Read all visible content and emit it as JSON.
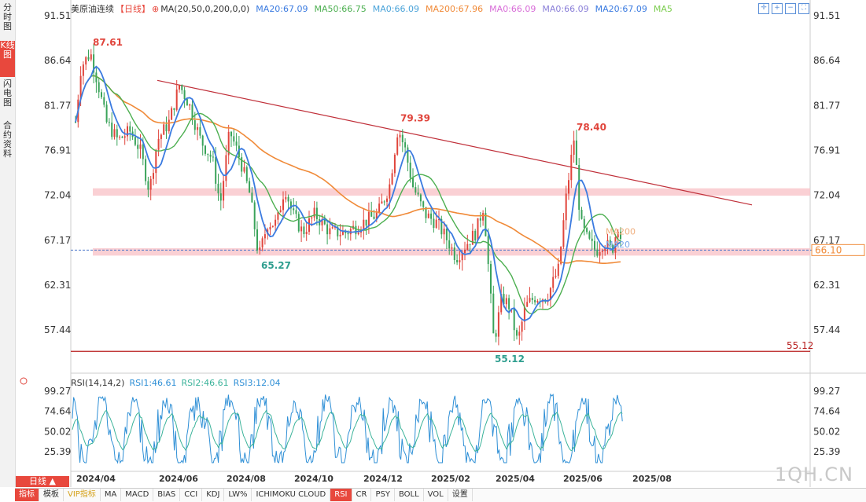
{
  "left_tabs": [
    "分时图",
    "K线图",
    "闪电图",
    "合约资料"
  ],
  "legend": {
    "title": "美原油连续",
    "period": "【日线】",
    "indicator": "MA(20,50,0,200,0,0)",
    "items": [
      {
        "label": "MA20:67.09",
        "color": "#3b7be0"
      },
      {
        "label": "MA50:66.75",
        "color": "#4caf50"
      },
      {
        "label": "MA0:66.09",
        "color": "#4aa3d9"
      },
      {
        "label": "MA200:67.96",
        "color": "#f08a38"
      },
      {
        "label": "MA0:66.09",
        "color": "#d86cd8"
      },
      {
        "label": "MA0:66.09",
        "color": "#8a7fd8"
      },
      {
        "label": "MA20:67.09",
        "color": "#3b7be0"
      },
      {
        "label": "MA5",
        "color": "#7ccd4f"
      }
    ]
  },
  "rsi_legend": {
    "title": "RSI(14,14,2)",
    "items": [
      {
        "label": "RSI1:46.61",
        "color": "#2e8fd6"
      },
      {
        "label": "RSI2:46.61",
        "color": "#3bb39a"
      },
      {
        "label": "RSI3:12.04",
        "color": "#2e8fd6"
      }
    ]
  },
  "period_button": "日线 ▲",
  "toolbar": [
    "指标",
    "模板",
    "VIP指标",
    "MA",
    "MACD",
    "BIAS",
    "CCI",
    "KDJ",
    "LW%",
    "ICHIMOKU CLOUD",
    "RSI",
    "CR",
    "PSY",
    "BOLL",
    "VOL",
    "设置"
  ],
  "watermark": "1QH.CN",
  "chart_data": [
    {
      "type": "candlestick",
      "title": "美原油连续",
      "y_ticks": [
        "91.51",
        "86.64",
        "81.77",
        "76.91",
        "72.04",
        "67.17",
        "62.31",
        "57.44"
      ],
      "x_ticks": [
        "2024/04",
        "2024/06",
        "2024/08",
        "2024/10",
        "2024/12",
        "2025/02",
        "2025/04",
        "2025/06",
        "2025/08"
      ],
      "ylim": [
        53.5,
        92.5
      ],
      "annotations": [
        {
          "label": "87.61",
          "x": "2024/04",
          "y": 87.61
        },
        {
          "label": "79.39",
          "x": "2025/01",
          "y": 79.39
        },
        {
          "label": "78.40",
          "x": "2025/06",
          "y": 78.4
        },
        {
          "label": "65.27",
          "x": "2024/09",
          "y": 65.27
        },
        {
          "label": "55.12",
          "x": "2025/04",
          "y": 55.12
        }
      ],
      "horizontal_lines": [
        {
          "label": "55.12",
          "y": 55.12,
          "color": "#b81e1e"
        }
      ],
      "current_price": {
        "label": "66.10",
        "y": 66.1
      },
      "bands": [
        [
          72.0,
          72.8
        ],
        [
          65.5,
          66.3
        ]
      ],
      "trendline": {
        "from": {
          "x": "2024/05",
          "y": 84.5
        },
        "to": {
          "x": "2025/08",
          "y": 71.0
        },
        "color": "#c0303a"
      },
      "ma_tags": [
        "MA200",
        "MA20"
      ]
    },
    {
      "type": "line",
      "title": "RSI(14,14,2)",
      "y_ticks": [
        "99.27",
        "74.64",
        "50.02",
        "25.39"
      ],
      "ylim": [
        10,
        100
      ],
      "series": [
        {
          "name": "RSI1",
          "color": "#2e8fd6",
          "last": 46.61
        },
        {
          "name": "RSI2",
          "color": "#3bb39a",
          "last": 46.61
        },
        {
          "name": "RSI3",
          "color": "#2e8fd6",
          "last": 12.04
        }
      ]
    }
  ]
}
